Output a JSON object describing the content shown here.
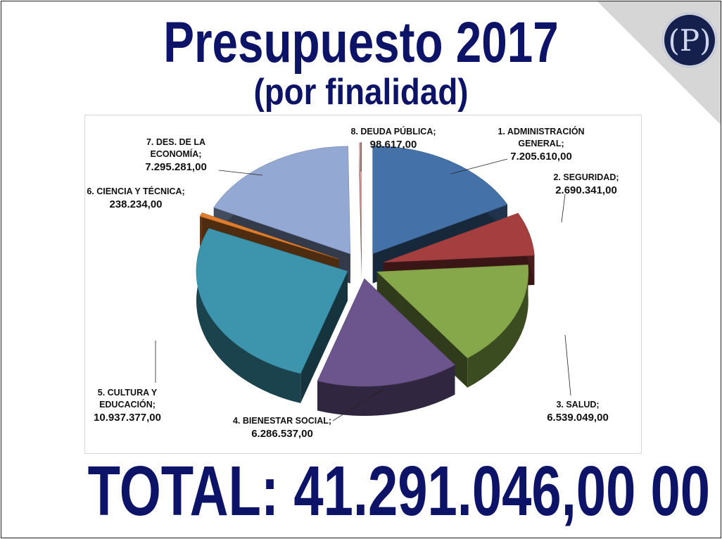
{
  "header": {
    "title": "Presupuesto 2017",
    "subtitle": "(por finalidad)"
  },
  "logo": {
    "letter": "(P)",
    "color": "#15204d"
  },
  "total": "TOTAL: 41.291.046,00 00",
  "chart_data": {
    "type": "pie",
    "style": "3d-exploded",
    "categories": [
      "1. ADMINISTRACIÓN GENERAL",
      "2. SEGURIDAD",
      "3. SALUD",
      "4. BIENESTAR SOCIAL",
      "5. CULTURA Y EDUCACIÓN",
      "6. CIENCIA Y TÉCNICA",
      "7. DES. DE LA ECONOMÍA",
      "8. DEUDA PÚBLICA"
    ],
    "values": [
      7205610,
      2690341,
      6539049,
      6286537,
      10937377,
      238234,
      7295281,
      98617
    ],
    "labels": [
      {
        "lines": [
          "1. ADMINISTRACIÓN",
          "GENERAL;"
        ],
        "value": "7.205.610,00",
        "color": "#4472a8"
      },
      {
        "lines": [
          "2. SEGURIDAD;"
        ],
        "value": "2.690.341,00",
        "color": "#a53f3f"
      },
      {
        "lines": [
          "3. SALUD;"
        ],
        "value": "6.539.049,00",
        "color": "#86a84a"
      },
      {
        "lines": [
          "4. BIENESTAR SOCIAL;"
        ],
        "value": "6.286.537,00",
        "color": "#6c558c"
      },
      {
        "lines": [
          "5. CULTURA Y",
          "EDUCACIÓN;"
        ],
        "value": "10.937.377,00",
        "color": "#3d94ad"
      },
      {
        "lines": [
          "6. CIENCIA Y TÉCNICA;"
        ],
        "value": "238.234,00",
        "color": "#e07d2c"
      },
      {
        "lines": [
          "7. DES. DE LA",
          "ECONOMÍA;"
        ],
        "value": "7.295.281,00",
        "color": "#93a8d2"
      },
      {
        "lines": [
          "8. DEUDA PÚBLICA;"
        ],
        "value": "98.617,00",
        "color": "#e5a4a2"
      }
    ],
    "legend": "none",
    "grid": false
  }
}
